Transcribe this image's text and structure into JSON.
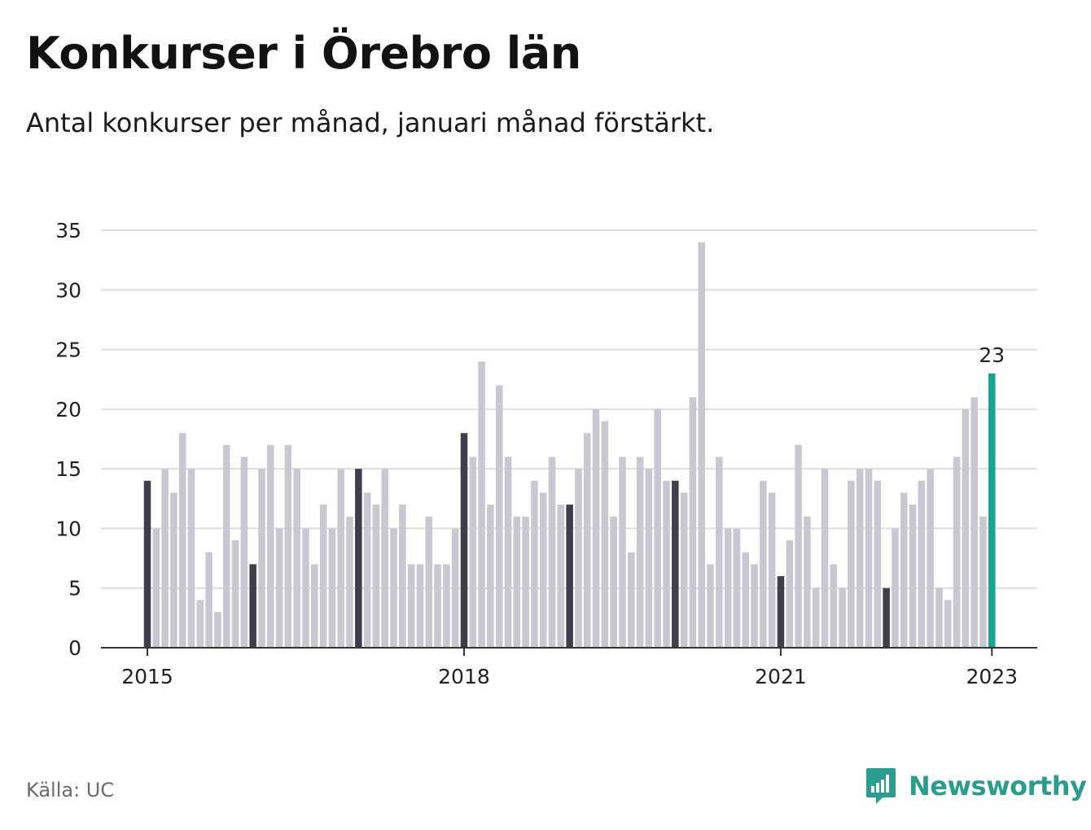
{
  "title": "Konkurser i Örebro län",
  "subtitle": "Antal konkurser per månad, januari månad förstärkt.",
  "source": "Källa: UC",
  "brand": {
    "name": "Newsworthy",
    "icon": "newsworthy-logo-icon"
  },
  "colors": {
    "regular": "#c9c8d2",
    "january": "#3f3e4c",
    "latest": "#18a392",
    "grid": "#dedede",
    "axis": "#333333"
  },
  "chart_data": {
    "type": "bar",
    "title": "Konkurser i Örebro län",
    "ylabel": "",
    "xlabel": "",
    "ylim": [
      0,
      35
    ],
    "yticks": [
      0,
      5,
      10,
      15,
      20,
      25,
      30,
      35
    ],
    "start": "2015-01",
    "x_tick_labels": [
      {
        "label": "2015",
        "index": 0
      },
      {
        "label": "2018",
        "index": 36
      },
      {
        "label": "2021",
        "index": 72
      },
      {
        "label": "2023",
        "index": 96
      }
    ],
    "values": [
      14,
      10,
      15,
      13,
      18,
      15,
      4,
      8,
      3,
      17,
      9,
      16,
      7,
      15,
      17,
      10,
      17,
      15,
      10,
      7,
      12,
      10,
      15,
      11,
      15,
      13,
      12,
      15,
      10,
      12,
      7,
      7,
      11,
      7,
      7,
      10,
      18,
      16,
      24,
      12,
      22,
      16,
      11,
      11,
      14,
      13,
      16,
      12,
      12,
      15,
      18,
      20,
      19,
      11,
      16,
      8,
      16,
      15,
      20,
      14,
      14,
      13,
      21,
      34,
      7,
      16,
      10,
      10,
      8,
      7,
      14,
      13,
      6,
      9,
      17,
      11,
      5,
      15,
      7,
      5,
      14,
      15,
      15,
      14,
      5,
      10,
      13,
      12,
      14,
      15,
      5,
      4,
      16,
      20,
      21,
      11,
      23
    ],
    "highlight_label": "23"
  }
}
